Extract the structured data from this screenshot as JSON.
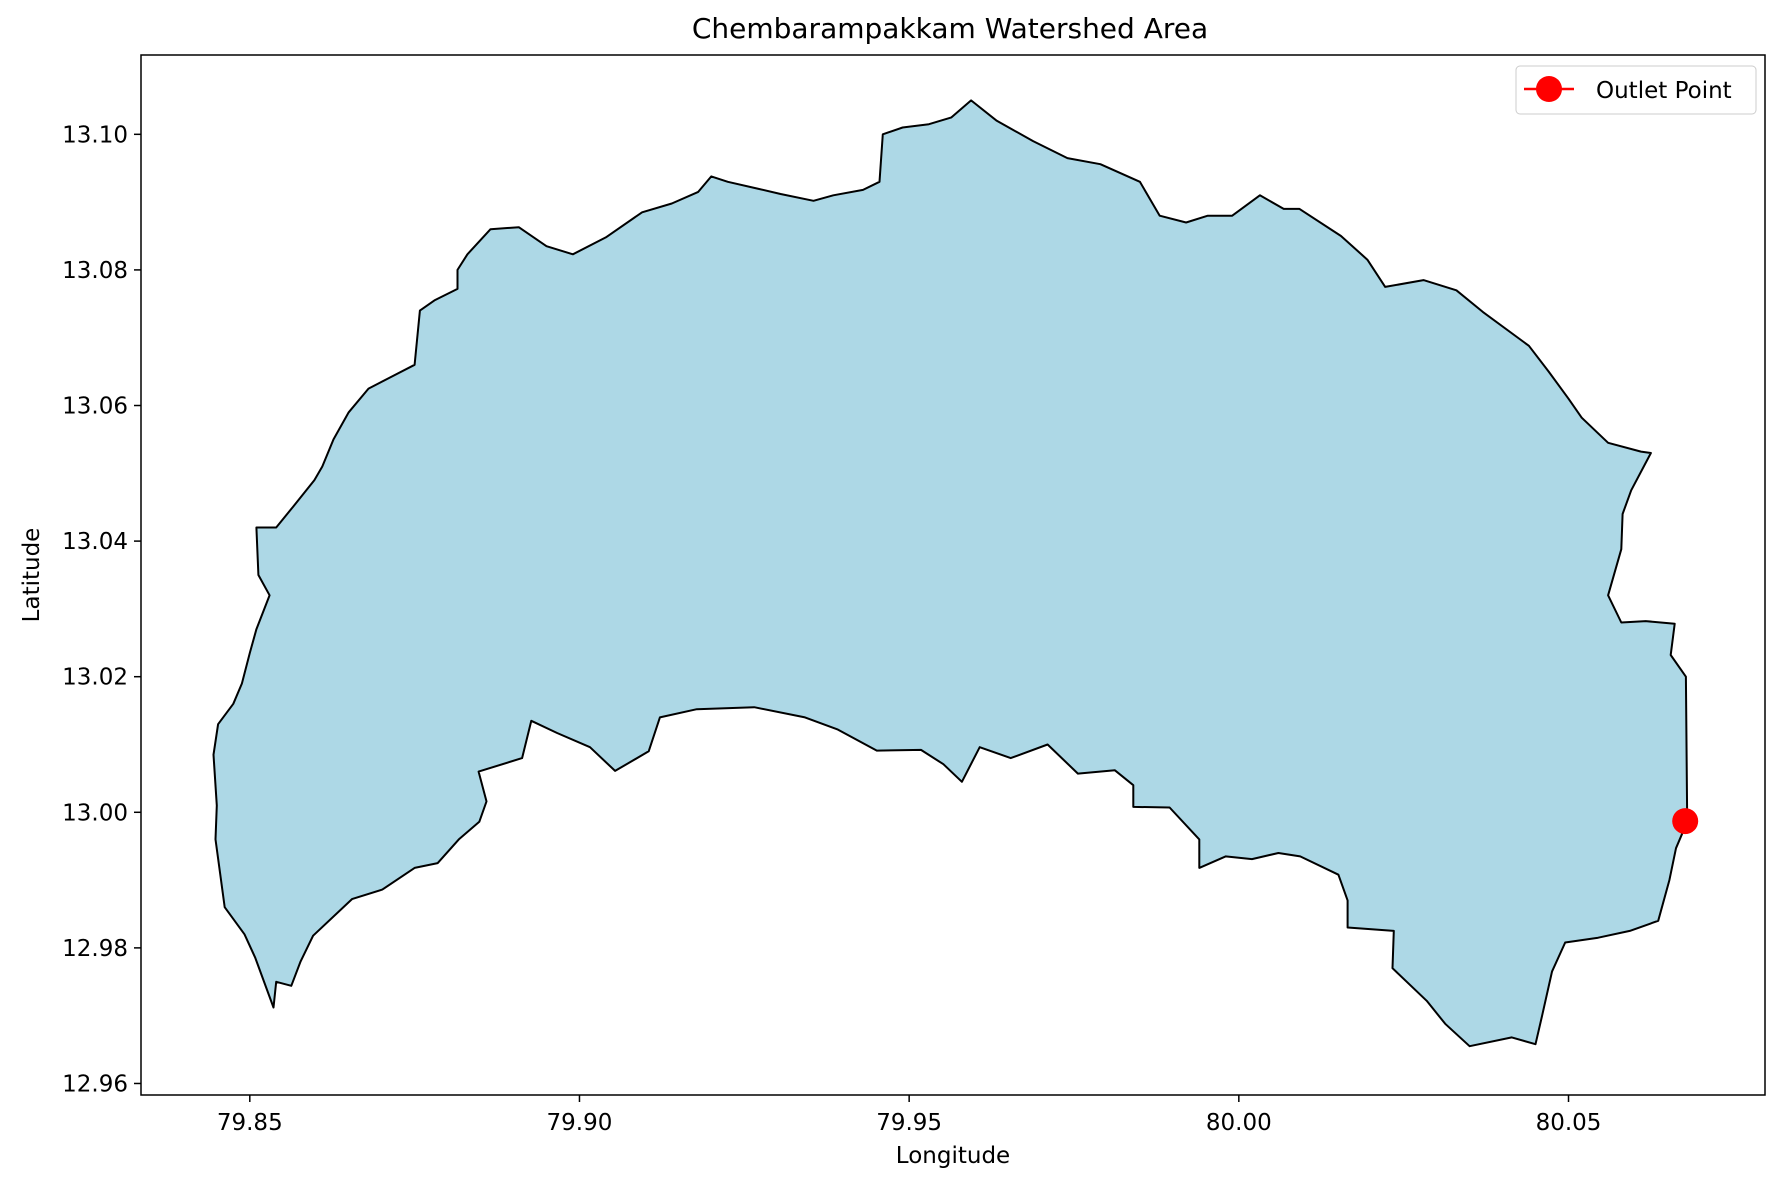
{
  "map": {
    "title": "Chembarampakkam Watershed Area",
    "xlabel": "Longitude",
    "ylabel": "Latitude",
    "xlim": [
      79.8335,
      80.0798
    ],
    "ylim": [
      12.9583,
      13.1117
    ],
    "xticks": [
      {
        "value": 79.85,
        "label": "79.85"
      },
      {
        "value": 79.9,
        "label": "79.90"
      },
      {
        "value": 79.95,
        "label": "79.95"
      },
      {
        "value": 80.0,
        "label": "80.00"
      },
      {
        "value": 80.05,
        "label": "80.05"
      }
    ],
    "yticks": [
      {
        "value": 12.96,
        "label": "12.96"
      },
      {
        "value": 12.98,
        "label": "12.98"
      },
      {
        "value": 13.0,
        "label": "13.00"
      },
      {
        "value": 13.02,
        "label": "13.02"
      },
      {
        "value": 13.04,
        "label": "13.04"
      },
      {
        "value": 13.06,
        "label": "13.06"
      },
      {
        "value": 13.08,
        "label": "13.08"
      },
      {
        "value": 13.1,
        "label": "13.10"
      }
    ],
    "watershed": {
      "fill_color": "#add8e6",
      "edge_color": "#000000",
      "boundary": [
        [
          79.8536,
          12.9712
        ],
        [
          79.854,
          12.975
        ],
        [
          79.8563,
          12.9744
        ],
        [
          79.8577,
          12.978
        ],
        [
          79.8596,
          12.9818
        ],
        [
          79.8655,
          12.9872
        ],
        [
          79.8701,
          12.9886
        ],
        [
          79.875,
          12.9918
        ],
        [
          79.8785,
          12.9925
        ],
        [
          79.8817,
          12.996
        ],
        [
          79.8848,
          12.9986
        ],
        [
          79.8859,
          13.0016
        ],
        [
          79.8847,
          13.006
        ],
        [
          79.8913,
          13.008
        ],
        [
          79.8927,
          13.0135
        ],
        [
          79.8966,
          13.0117
        ],
        [
          79.9016,
          13.0096
        ],
        [
          79.9054,
          13.0061
        ],
        [
          79.9105,
          13.009
        ],
        [
          79.9122,
          13.014
        ],
        [
          79.9178,
          13.0152
        ],
        [
          79.9265,
          13.0155
        ],
        [
          79.9342,
          13.014
        ],
        [
          79.9392,
          13.0122
        ],
        [
          79.9451,
          13.0091
        ],
        [
          79.9518,
          13.0092
        ],
        [
          79.9552,
          13.0071
        ],
        [
          79.958,
          13.0045
        ],
        [
          79.9607,
          13.0096
        ],
        [
          79.9654,
          13.008
        ],
        [
          79.971,
          13.01
        ],
        [
          79.9756,
          13.0057
        ],
        [
          79.9812,
          13.0062
        ],
        [
          79.984,
          13.004
        ],
        [
          79.984,
          13.0008
        ],
        [
          79.9895,
          13.0007
        ],
        [
          79.994,
          12.996
        ],
        [
          79.994,
          12.9918
        ],
        [
          79.998,
          12.9935
        ],
        [
          80.002,
          12.9931
        ],
        [
          80.006,
          12.994
        ],
        [
          80.0093,
          12.9935
        ],
        [
          80.0151,
          12.9908
        ],
        [
          80.0165,
          12.987
        ],
        [
          80.0165,
          12.983
        ],
        [
          80.0235,
          12.9825
        ],
        [
          80.0233,
          12.977
        ],
        [
          80.0285,
          12.9722
        ],
        [
          80.0313,
          12.9688
        ],
        [
          80.035,
          12.9655
        ],
        [
          80.0414,
          12.9668
        ],
        [
          80.045,
          12.9658
        ],
        [
          80.046,
          12.97
        ],
        [
          80.0475,
          12.9765
        ],
        [
          80.0495,
          12.9808
        ],
        [
          80.0545,
          12.9815
        ],
        [
          80.0593,
          12.9825
        ],
        [
          80.0636,
          12.984
        ],
        [
          80.0653,
          12.99
        ],
        [
          80.0663,
          12.9947
        ],
        [
          80.068,
          12.9986
        ],
        [
          80.0678,
          13.02
        ],
        [
          80.0655,
          13.0232
        ],
        [
          80.0661,
          13.0278
        ],
        [
          80.0617,
          13.0282
        ],
        [
          80.058,
          13.028
        ],
        [
          80.056,
          13.032
        ],
        [
          80.058,
          13.0388
        ],
        [
          80.0582,
          13.044
        ],
        [
          80.0595,
          13.0475
        ],
        [
          80.0625,
          13.053
        ],
        [
          80.061,
          13.0532
        ],
        [
          80.056,
          13.0545
        ],
        [
          80.052,
          13.0582
        ],
        [
          80.05,
          13.061
        ],
        [
          80.047,
          13.065
        ],
        [
          80.044,
          13.0688
        ],
        [
          80.037,
          13.0738
        ],
        [
          80.033,
          13.077
        ],
        [
          80.028,
          13.0785
        ],
        [
          80.0222,
          13.0775
        ],
        [
          80.0195,
          13.0815
        ],
        [
          80.0155,
          13.085
        ],
        [
          80.0092,
          13.089
        ],
        [
          80.0068,
          13.089
        ],
        [
          80.0032,
          13.091
        ],
        [
          79.999,
          13.088
        ],
        [
          79.9953,
          13.088
        ],
        [
          79.992,
          13.087
        ],
        [
          79.988,
          13.088
        ],
        [
          79.985,
          13.093
        ],
        [
          79.979,
          13.0956
        ],
        [
          79.974,
          13.0965
        ],
        [
          79.9688,
          13.099
        ],
        [
          79.9633,
          13.102
        ],
        [
          79.9594,
          13.105
        ],
        [
          79.9564,
          13.1025
        ],
        [
          79.953,
          13.1015
        ],
        [
          79.949,
          13.101
        ],
        [
          79.946,
          13.1
        ],
        [
          79.9455,
          13.093
        ],
        [
          79.943,
          13.0918
        ],
        [
          79.9385,
          13.091
        ],
        [
          79.9355,
          13.0902
        ],
        [
          79.9305,
          13.0912
        ],
        [
          79.927,
          13.092
        ],
        [
          79.9225,
          13.093
        ],
        [
          79.92,
          13.0938
        ],
        [
          79.918,
          13.0915
        ],
        [
          79.914,
          13.0898
        ],
        [
          79.9095,
          13.0885
        ],
        [
          79.904,
          13.0848
        ],
        [
          79.899,
          13.0823
        ],
        [
          79.895,
          13.0835
        ],
        [
          79.8908,
          13.0863
        ],
        [
          79.8865,
          13.086
        ],
        [
          79.883,
          13.0823
        ],
        [
          79.8815,
          13.08
        ],
        [
          79.8815,
          13.0772
        ],
        [
          79.878,
          13.0755
        ],
        [
          79.8758,
          13.074
        ],
        [
          79.875,
          13.066
        ],
        [
          79.871,
          13.064
        ],
        [
          79.868,
          13.0625
        ],
        [
          79.865,
          13.059
        ],
        [
          79.8627,
          13.055
        ],
        [
          79.861,
          13.051
        ],
        [
          79.8598,
          13.049
        ],
        [
          79.8565,
          13.045
        ],
        [
          79.854,
          13.042
        ],
        [
          79.851,
          13.042
        ],
        [
          79.8513,
          13.035
        ],
        [
          79.853,
          13.032
        ],
        [
          79.851,
          13.027
        ],
        [
          79.85,
          13.0235
        ],
        [
          79.8488,
          13.019
        ],
        [
          79.8475,
          13.016
        ],
        [
          79.8452,
          13.013
        ],
        [
          79.8445,
          13.0085
        ],
        [
          79.845,
          13.001
        ],
        [
          79.8448,
          12.996
        ],
        [
          79.8455,
          12.991
        ],
        [
          79.8462,
          12.986
        ],
        [
          79.8492,
          12.982
        ],
        [
          79.8508,
          12.9786
        ]
      ]
    },
    "outlet": {
      "label": "Outlet Point",
      "lon": 80.0677,
      "lat": 12.9987,
      "color": "#ff0000"
    },
    "legend": {
      "location": "upper right",
      "entries": [
        "Outlet Point"
      ]
    }
  }
}
